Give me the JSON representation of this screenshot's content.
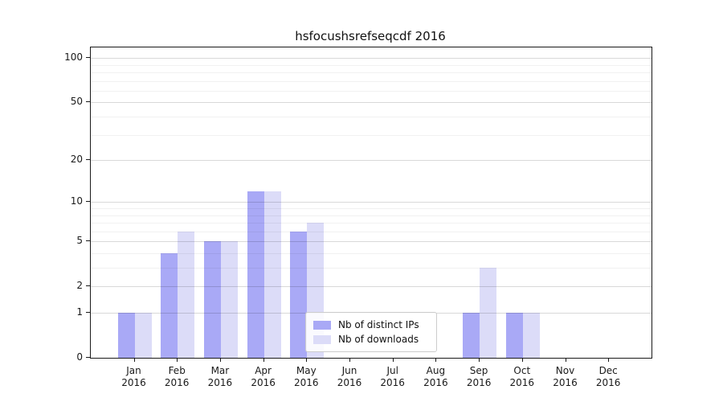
{
  "title": "hsfocushsrefseqcdf 2016",
  "chart_data": {
    "type": "bar",
    "title": "hsfocushsrefseqcdf 2016",
    "categories": [
      "Jan",
      "Feb",
      "Mar",
      "Apr",
      "May",
      "Jun",
      "Jul",
      "Aug",
      "Sep",
      "Oct",
      "Nov",
      "Dec"
    ],
    "year_label": "2016",
    "series": [
      {
        "name": "Nb of distinct IPs",
        "color": "#a9a9f6",
        "values": [
          1,
          4,
          5,
          12,
          6,
          0,
          0,
          0,
          1,
          1,
          0,
          0
        ]
      },
      {
        "name": "Nb of downloads",
        "color": "#dcdcf8",
        "values": [
          1,
          6,
          5,
          12,
          7,
          0,
          0,
          0,
          3,
          1,
          0,
          0
        ]
      }
    ],
    "xlabel": "",
    "ylabel": "",
    "yscale": "log10(1+v)",
    "ylim": [
      0,
      118
    ],
    "y_ticks": [
      0,
      1,
      2,
      5,
      10,
      20,
      50,
      100
    ],
    "minor_gridlines": [
      3,
      4,
      6,
      7,
      8,
      9,
      30,
      40,
      60,
      70,
      80,
      90
    ],
    "grid": true,
    "legend_position": "lower center"
  },
  "colors": {
    "distinct_ips_bar": "#a9a9f6",
    "downloads_bar": "#dcdcf8",
    "major_gridline": "#d9d9d9",
    "minor_gridline": "#f0f0f0",
    "axis": "#1a1a1a",
    "background": "#ffffff"
  }
}
